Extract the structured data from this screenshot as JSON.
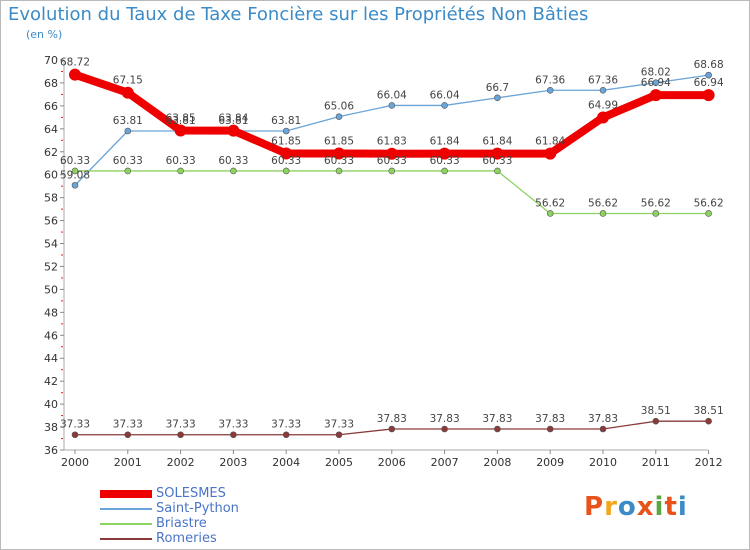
{
  "title": "Evolution du Taux de Taxe Foncière sur les Propriétés Non Bâties",
  "unit_label": "(en %)",
  "logo_text": "Proxiti",
  "logo_colors": [
    "#e8521b",
    "#f2a81d",
    "#3c8bc6",
    "#e8521b",
    "#5aa641",
    "#e8521b",
    "#3c8bc6"
  ],
  "chart_data": {
    "type": "line",
    "title": "Evolution du Taux de Taxe Foncière sur les Propriétés Non Bâties",
    "xlabel": "",
    "ylabel": "(en %)",
    "ylim": [
      36,
      70
    ],
    "yticks": [
      36,
      38,
      40,
      42,
      44,
      46,
      48,
      50,
      52,
      54,
      56,
      58,
      60,
      62,
      64,
      66,
      68,
      70
    ],
    "x": [
      "2000",
      "2001",
      "2002",
      "2003",
      "2004",
      "2005",
      "2006",
      "2007",
      "2008",
      "2009",
      "2010",
      "2011",
      "2012"
    ],
    "series": [
      {
        "name": "SOLESMES",
        "color": "#ee0000",
        "values": [
          68.72,
          67.15,
          63.85,
          63.84,
          61.85,
          61.85,
          61.83,
          61.84,
          61.84,
          61.84,
          64.99,
          66.94,
          66.94
        ],
        "labels": [
          "68.72",
          "67.15",
          "63.85",
          "63.84",
          "61.85",
          "61.85",
          "61.83",
          "61.84",
          "61.84",
          "61.84",
          "64.99",
          "66.94",
          "66.94"
        ]
      },
      {
        "name": "Saint-Python",
        "color": "#6aa4d8",
        "values": [
          59.08,
          63.81,
          63.81,
          63.81,
          63.81,
          65.06,
          66.04,
          66.04,
          66.7,
          67.36,
          67.36,
          68.02,
          68.68
        ],
        "labels": [
          "59.08",
          "63.81",
          "63.81",
          "63.81",
          "63.81",
          "65.06",
          "66.04",
          "66.04",
          "66.7",
          "67.36",
          "67.36",
          "68.02",
          "68.68"
        ]
      },
      {
        "name": "Briastre",
        "color": "#8dd35f",
        "values": [
          60.33,
          60.33,
          60.33,
          60.33,
          60.33,
          60.33,
          60.33,
          60.33,
          60.33,
          56.62,
          56.62,
          56.62,
          56.62
        ],
        "labels": [
          "60.33",
          "60.33",
          "60.33",
          "60.33",
          "60.33",
          "60.33",
          "60.33",
          "60.33",
          "60.33",
          "56.62",
          "56.62",
          "56.62",
          "56.62"
        ]
      },
      {
        "name": "Romeries",
        "color": "#8b3a3a",
        "values": [
          37.33,
          37.33,
          37.33,
          37.33,
          37.33,
          37.33,
          37.83,
          37.83,
          37.83,
          37.83,
          37.83,
          38.51,
          38.51
        ],
        "labels": [
          "37.33",
          "37.33",
          "37.33",
          "37.33",
          "37.33",
          "37.33",
          "37.83",
          "37.83",
          "37.83",
          "37.83",
          "37.83",
          "38.51",
          "38.51"
        ]
      }
    ],
    "grid": false,
    "legend": "bottom-left"
  }
}
